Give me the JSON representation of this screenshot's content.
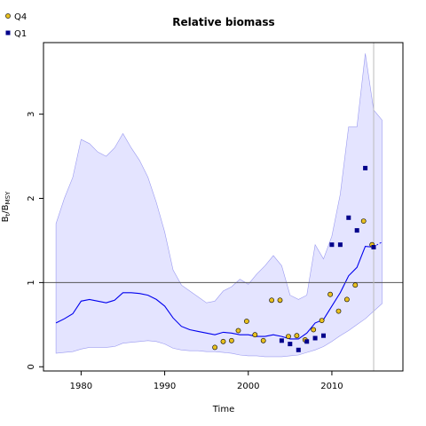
{
  "chart_data": {
    "type": "scatter",
    "title": "Relative biomass",
    "xlabel": "Time",
    "ylabel_main": "B",
    "ylabel_sub1": "t",
    "ylabel_sep": "/B",
    "ylabel_sub2": "MSY",
    "xlim": [
      1975.5,
      2018.5
    ],
    "ylim": [
      -0.05,
      3.85
    ],
    "x_ticks": [
      1980,
      1990,
      2000,
      2010
    ],
    "y_ticks": [
      0,
      1,
      2,
      3
    ],
    "reference_line_y": 1,
    "vertical_line_x": 2015,
    "colors": {
      "band": "#e4e4ff",
      "band_edge": "#9a9af0",
      "median": "#0000ee",
      "q4_fill": "#e8c020",
      "q1_fill": "#00008b",
      "reference": "#555555",
      "vline": "#bbbbbb"
    },
    "legend": [
      {
        "key": "q4",
        "label": "Q4"
      },
      {
        "key": "q1",
        "label": "Q1"
      }
    ],
    "band": {
      "x": [
        1977,
        1978,
        1979,
        1980,
        1981,
        1982,
        1983,
        1984,
        1985,
        1986,
        1987,
        1988,
        1989,
        1990,
        1991,
        1992,
        1993,
        1994,
        1995,
        1996,
        1997,
        1998,
        1999,
        2000,
        2001,
        2002,
        2003,
        2004,
        2005,
        2006,
        2007,
        2008,
        2009,
        2010,
        2011,
        2012,
        2013,
        2014,
        2015,
        2016
      ],
      "upper": [
        1.7,
        2.0,
        2.25,
        2.7,
        2.65,
        2.55,
        2.5,
        2.6,
        2.77,
        2.6,
        2.45,
        2.25,
        1.95,
        1.6,
        1.15,
        0.97,
        0.9,
        0.83,
        0.76,
        0.78,
        0.9,
        0.95,
        1.04,
        0.98,
        1.1,
        1.2,
        1.32,
        1.2,
        0.85,
        0.8,
        0.85,
        1.45,
        1.28,
        1.55,
        2.05,
        2.85,
        2.85,
        3.72,
        3.05,
        2.93
      ],
      "lower": [
        0.16,
        0.17,
        0.18,
        0.21,
        0.23,
        0.23,
        0.23,
        0.24,
        0.28,
        0.29,
        0.3,
        0.31,
        0.3,
        0.27,
        0.22,
        0.2,
        0.19,
        0.19,
        0.18,
        0.18,
        0.17,
        0.16,
        0.14,
        0.13,
        0.13,
        0.12,
        0.12,
        0.12,
        0.13,
        0.14,
        0.17,
        0.2,
        0.24,
        0.3,
        0.37,
        0.43,
        0.5,
        0.57,
        0.66,
        0.75
      ]
    },
    "median": {
      "x": [
        1977,
        1978,
        1979,
        1980,
        1981,
        1982,
        1983,
        1984,
        1985,
        1986,
        1987,
        1988,
        1989,
        1990,
        1991,
        1992,
        1993,
        1994,
        1995,
        1996,
        1997,
        1998,
        1999,
        2000,
        2001,
        2002,
        2003,
        2004,
        2005,
        2006,
        2007,
        2008,
        2009,
        2010,
        2011,
        2012,
        2013,
        2014,
        2015
      ],
      "y": [
        0.52,
        0.57,
        0.63,
        0.78,
        0.8,
        0.78,
        0.76,
        0.79,
        0.88,
        0.88,
        0.87,
        0.85,
        0.8,
        0.72,
        0.58,
        0.48,
        0.44,
        0.42,
        0.4,
        0.38,
        0.41,
        0.4,
        0.38,
        0.38,
        0.36,
        0.36,
        0.38,
        0.36,
        0.33,
        0.33,
        0.4,
        0.52,
        0.56,
        0.72,
        0.88,
        1.08,
        1.18,
        1.43,
        1.42
      ]
    },
    "projection": {
      "x": [
        2015,
        2015.6,
        2016
      ],
      "y": [
        1.42,
        1.46,
        1.48
      ]
    },
    "series": [
      {
        "key": "q4",
        "name": "Q4",
        "x": [
          1996,
          1997,
          1998,
          1998.8,
          1999.8,
          2000.8,
          2001.8,
          2002.8,
          2003.8,
          2004.8,
          2005.8,
          2006.8,
          2007.8,
          2008.8,
          2009.8,
          2010.8,
          2011.8,
          2012.8,
          2013.8,
          2014.8
        ],
        "y": [
          0.23,
          0.3,
          0.31,
          0.43,
          0.54,
          0.38,
          0.31,
          0.79,
          0.79,
          0.36,
          0.37,
          0.32,
          0.44,
          0.55,
          0.86,
          0.66,
          0.8,
          0.97,
          1.73,
          1.45
        ]
      },
      {
        "key": "q1",
        "name": "Q1",
        "x": [
          2004,
          2005,
          2006,
          2007,
          2008,
          2009,
          2010,
          2011,
          2012,
          2013,
          2014,
          2015
        ],
        "y": [
          0.31,
          0.27,
          0.2,
          0.3,
          0.34,
          0.37,
          1.45,
          1.45,
          1.77,
          1.62,
          2.36,
          1.42
        ]
      }
    ]
  }
}
